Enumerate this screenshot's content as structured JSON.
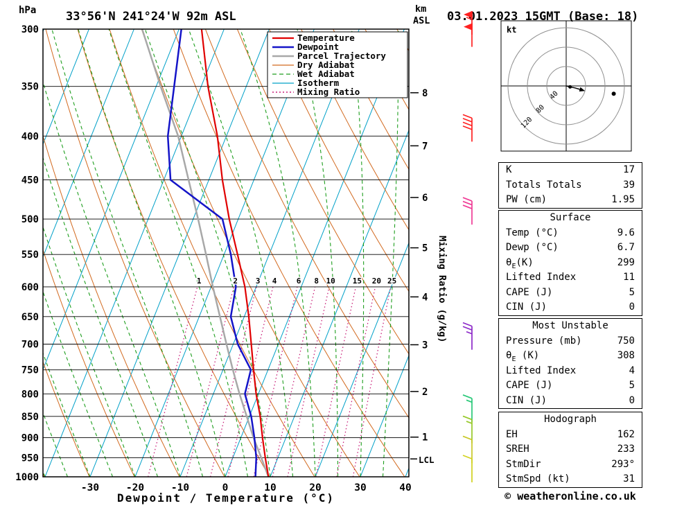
{
  "header": {
    "station": "33°56'N 241°24'W 92m ASL",
    "datetime": "03.01.2023 15GMT (Base: 18)"
  },
  "axes": {
    "pressure_unit": "hPa",
    "pressure_ticks": [
      300,
      350,
      400,
      450,
      500,
      550,
      600,
      650,
      700,
      750,
      800,
      850,
      900,
      950,
      1000
    ],
    "temp_ticks": [
      -30,
      -20,
      -10,
      0,
      10,
      20,
      30,
      40
    ],
    "xlabel": "Dewpoint / Temperature (°C)",
    "km_unit_line1": "km",
    "km_unit_line2": "ASL",
    "km_ticks": [
      1,
      2,
      3,
      4,
      5,
      6,
      7,
      8
    ],
    "lcl_label": "LCL",
    "mixing_axis_label": "Mixing Ratio (g/kg)",
    "mixing_values": [
      1,
      2,
      3,
      4,
      6,
      8,
      10,
      15,
      20,
      25
    ]
  },
  "legend": [
    {
      "label": "Temperature",
      "color": "#e00000",
      "style": "solid",
      "width": 2.2
    },
    {
      "label": "Dewpoint",
      "color": "#1414c8",
      "style": "solid",
      "width": 2.5
    },
    {
      "label": "Parcel Trajectory",
      "color": "#a8a8a8",
      "style": "solid",
      "width": 2.5
    },
    {
      "label": "Dry Adiabat",
      "color": "#d2691e",
      "style": "solid",
      "width": 1.2
    },
    {
      "label": "Wet Adiabat",
      "color": "#1e9e1e",
      "style": "dashed",
      "width": 1.2
    },
    {
      "label": "Isotherm",
      "color": "#00a0c8",
      "style": "solid",
      "width": 1.2
    },
    {
      "label": "Mixing Ratio",
      "color": "#c81e78",
      "style": "dotted",
      "width": 1.4
    }
  ],
  "hodograph": {
    "unit": "kt",
    "rings": [
      40,
      80,
      120
    ]
  },
  "tables": {
    "indices": {
      "rows": [
        {
          "label": "K",
          "value": "17"
        },
        {
          "label": "Totals Totals",
          "value": "39"
        },
        {
          "label": "PW (cm)",
          "value": "1.95"
        }
      ]
    },
    "surface": {
      "title": "Surface",
      "rows": [
        {
          "label": "Temp (°C)",
          "value": "9.6"
        },
        {
          "label": "Dewp (°C)",
          "value": "6.7"
        },
        {
          "theta_base": "θ",
          "theta_sub": "E",
          "theta_rest": "(K)",
          "value": "299"
        },
        {
          "label": "Lifted Index",
          "value": "11"
        },
        {
          "label": "CAPE (J)",
          "value": "5"
        },
        {
          "label": "CIN (J)",
          "value": "0"
        }
      ]
    },
    "most_unstable": {
      "title": "Most Unstable",
      "rows": [
        {
          "label": "Pressure (mb)",
          "value": "750"
        },
        {
          "theta_base": "θ",
          "theta_sub": "E",
          "theta_rest": " (K)",
          "value": "308"
        },
        {
          "label": "Lifted Index",
          "value": "4"
        },
        {
          "label": "CAPE (J)",
          "value": "5"
        },
        {
          "label": "CIN (J)",
          "value": "0"
        }
      ]
    },
    "hodograph_table": {
      "title": "Hodograph",
      "rows": [
        {
          "label": "EH",
          "value": "162"
        },
        {
          "label": "SREH",
          "value": "233"
        },
        {
          "label": "StmDir",
          "value": "293°"
        },
        {
          "label": "StmSpd (kt)",
          "value": "31"
        }
      ]
    }
  },
  "footer": {
    "copyright": "© weatheronline.co.uk"
  },
  "chart_data": {
    "type": "skewt_sounding",
    "pressure_axis_hpa": [
      300,
      1000
    ],
    "temp_axis_c": [
      -40,
      40
    ],
    "temperature_profile_p_c": [
      [
        1000,
        9.6
      ],
      [
        950,
        7.2
      ],
      [
        900,
        4.8
      ],
      [
        850,
        2.4
      ],
      [
        800,
        -0.5
      ],
      [
        750,
        -3.2
      ],
      [
        700,
        -6.0
      ],
      [
        650,
        -9.0
      ],
      [
        600,
        -12.5
      ],
      [
        550,
        -17.0
      ],
      [
        500,
        -22.0
      ],
      [
        450,
        -27.0
      ],
      [
        400,
        -32.0
      ],
      [
        350,
        -38.5
      ],
      [
        300,
        -45.0
      ]
    ],
    "dewpoint_profile_p_c": [
      [
        1000,
        6.7
      ],
      [
        950,
        5.2
      ],
      [
        900,
        3.0
      ],
      [
        850,
        0.4
      ],
      [
        800,
        -3.0
      ],
      [
        750,
        -3.8
      ],
      [
        700,
        -9.0
      ],
      [
        650,
        -13.0
      ],
      [
        600,
        -14.5
      ],
      [
        550,
        -18.5
      ],
      [
        500,
        -23.5
      ],
      [
        450,
        -38.5
      ],
      [
        400,
        -43.0
      ],
      [
        350,
        -46.0
      ],
      [
        300,
        -49.5
      ]
    ],
    "parcel_profile_p_c": [
      [
        1000,
        9.6
      ],
      [
        950,
        6.3
      ],
      [
        900,
        2.8
      ],
      [
        850,
        -0.6
      ],
      [
        800,
        -4.2
      ],
      [
        750,
        -7.8
      ],
      [
        700,
        -11.5
      ],
      [
        650,
        -15.4
      ],
      [
        600,
        -19.6
      ],
      [
        550,
        -24.0
      ],
      [
        500,
        -28.9
      ],
      [
        450,
        -34.5
      ],
      [
        400,
        -40.7
      ],
      [
        350,
        -49.0
      ],
      [
        300,
        -58.2
      ]
    ],
    "lcl_pressure_hpa": 953,
    "winds": [
      {
        "p": 300,
        "speed_kt": 55,
        "color": "#ff2020"
      },
      {
        "p": 310,
        "speed_kt": 50,
        "color": "#ff2020"
      },
      {
        "p": 400,
        "speed_kt": 40,
        "color": "#ff2020"
      },
      {
        "p": 500,
        "speed_kt": 30,
        "color": "#f03c96"
      },
      {
        "p": 700,
        "speed_kt": 25,
        "color": "#8c28c8"
      },
      {
        "p": 850,
        "speed_kt": 15,
        "color": "#28c878"
      },
      {
        "p": 900,
        "speed_kt": 15,
        "color": "#96c828"
      },
      {
        "p": 950,
        "speed_kt": 10,
        "color": "#c8c828"
      },
      {
        "p": 1000,
        "speed_kt": 10,
        "color": "#d2d21e"
      }
    ],
    "hodograph_trace_kt": [
      [
        0,
        0
      ],
      [
        8,
        -2
      ],
      [
        18,
        -4
      ],
      [
        28,
        -7
      ]
    ],
    "hodograph_marker_kt": [
      98,
      -16
    ],
    "storm_motion": {
      "dir_deg": 293,
      "speed_kt": 31
    }
  }
}
